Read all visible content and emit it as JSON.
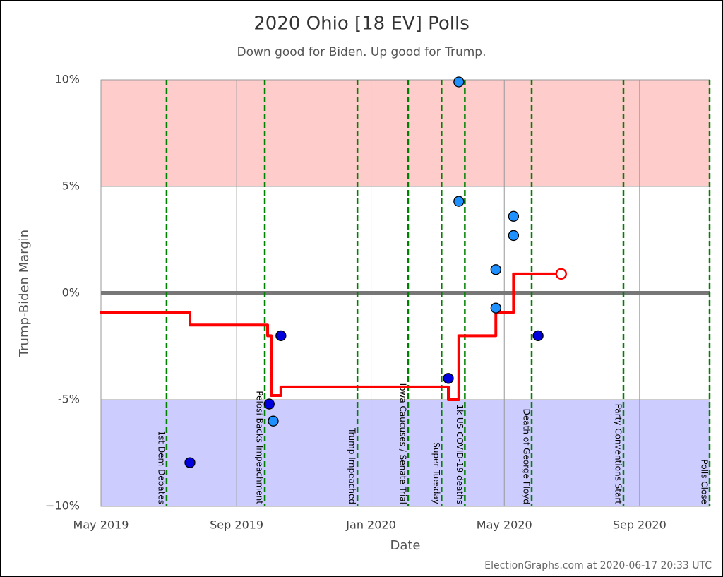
{
  "chart_data": {
    "type": "scatter",
    "title": "2020 Ohio [18 EV] Polls",
    "subtitle": "Down good for Biden. Up good for Trump.",
    "x_label": "Date",
    "y_label": "Trump-Biden Margin",
    "footer": "ElectionGraphs.com at 2020-06-17 20:33 UTC",
    "xlim": [
      2019.329,
      2020.841
    ],
    "xticks": [
      {
        "value": 2019.329,
        "label": "May 2019"
      },
      {
        "value": 2019.666,
        "label": "Sep 2019"
      },
      {
        "value": 2020.0,
        "label": "Jan 2020"
      },
      {
        "value": 2020.331,
        "label": "May 2020"
      },
      {
        "value": 2020.667,
        "label": "Sep 2020"
      }
    ],
    "ylim": [
      -10,
      10
    ],
    "yticks": [
      {
        "value": -10,
        "label": "−10%"
      },
      {
        "value": -5,
        "label": "-5%"
      },
      {
        "value": 0,
        "label": "0%"
      },
      {
        "value": 5,
        "label": "5%"
      },
      {
        "value": 10,
        "label": "10%"
      }
    ],
    "grid": true,
    "bands": [
      {
        "from": 5,
        "to": 10,
        "color": "#ffcccc"
      },
      {
        "from": -10,
        "to": -5,
        "color": "#ccccff"
      }
    ],
    "events": [
      {
        "x": 2019.492,
        "label": "1st Dem Debates"
      },
      {
        "x": 2019.736,
        "label": "Pelosi Backs Impeachment"
      },
      {
        "x": 2019.966,
        "label": "Trump Impeached"
      },
      {
        "x": 2020.092,
        "label": "Iowa Caucuses / Senate Trial"
      },
      {
        "x": 2020.175,
        "label": "Super Tuesday"
      },
      {
        "x": 2020.233,
        "label": "1k US COVID-19 deaths"
      },
      {
        "x": 2020.399,
        "label": "Death of George Floyd"
      },
      {
        "x": 2020.627,
        "label": "Party Conventions Start"
      },
      {
        "x": 2020.841,
        "label": "Polls Close"
      }
    ],
    "series": [
      {
        "color": "#0000dd",
        "x": [
          2019.55,
          2019.747,
          2019.776,
          2020.192,
          2020.415
        ],
        "values": [
          -7.95,
          -5.2,
          -2.0,
          -4.0,
          -2.0
        ]
      },
      {
        "color": "#1e90ff",
        "x": [
          2019.757,
          2020.218,
          2020.218,
          2020.31,
          2020.31,
          2020.354,
          2020.354
        ],
        "values": [
          -6.0,
          9.9,
          4.3,
          1.1,
          -0.7,
          3.6,
          2.7
        ]
      }
    ],
    "average": {
      "color": "#ff0000",
      "x": [
        2019.329,
        2019.55,
        2019.743,
        2019.752,
        2019.776,
        2020.192,
        2020.218,
        2020.31,
        2020.354,
        2020.46
      ],
      "values": [
        -0.9,
        -1.5,
        -2.0,
        -4.8,
        -4.4,
        -5.0,
        -2.0,
        -0.9,
        0.9,
        0.9
      ]
    }
  }
}
